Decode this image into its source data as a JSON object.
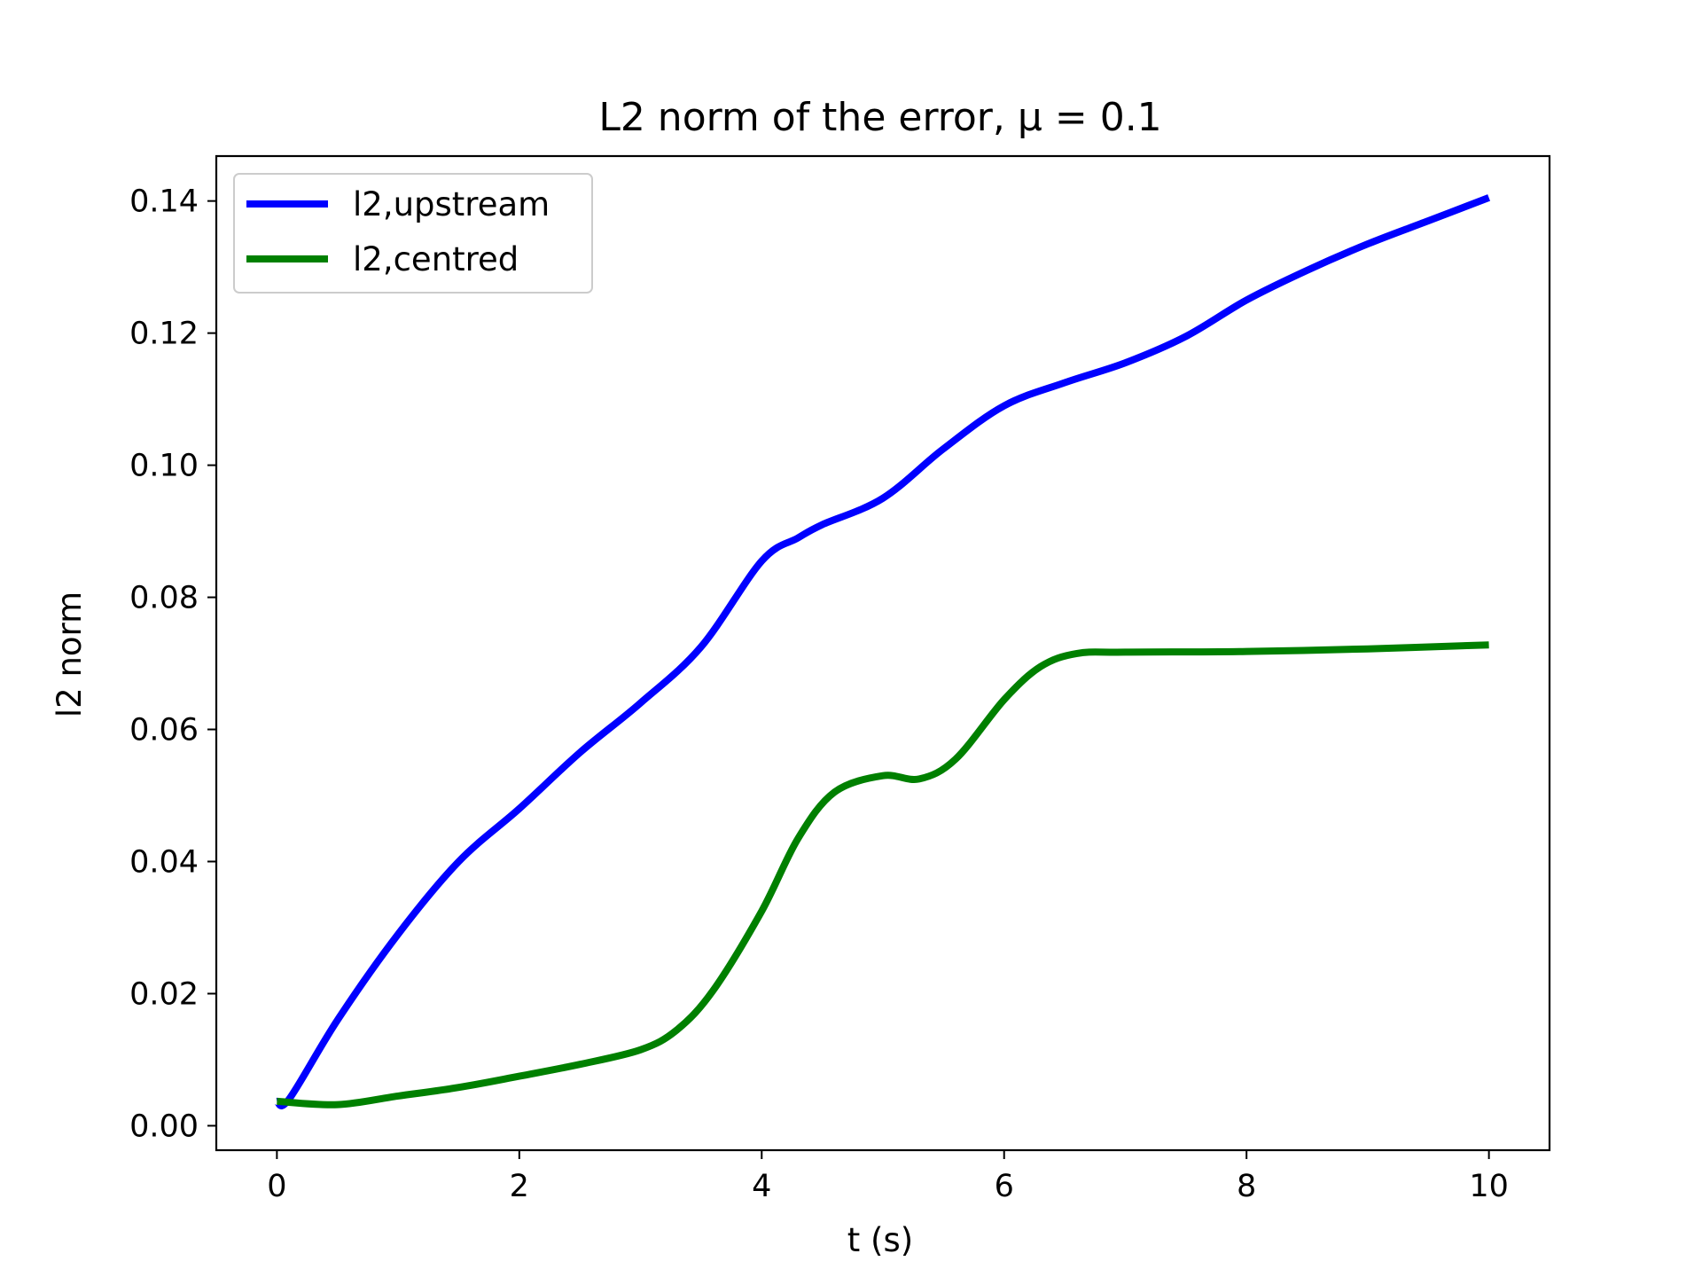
{
  "chart_data": {
    "type": "line",
    "title": "L2 norm of the error, μ = 0.1",
    "xlabel": "t (s)",
    "ylabel": "l2 norm",
    "xlim": [
      -0.5,
      10.5
    ],
    "ylim": [
      -0.0037,
      0.1468
    ],
    "xticks": [
      0,
      2,
      4,
      6,
      8,
      10
    ],
    "xtick_labels": [
      "0",
      "2",
      "4",
      "6",
      "8",
      "10"
    ],
    "yticks": [
      0.0,
      0.02,
      0.04,
      0.06,
      0.08,
      0.1,
      0.12,
      0.14
    ],
    "ytick_labels": [
      "0.00",
      "0.02",
      "0.04",
      "0.06",
      "0.08",
      "0.10",
      "0.12",
      "0.14"
    ],
    "grid": false,
    "legend_position": "top-left",
    "series": [
      {
        "name": "l2,upstream",
        "color": "#0000ff",
        "x": [
          0,
          0.1,
          0.5,
          1,
          1.5,
          2,
          2.5,
          3,
          3.5,
          4,
          4.3,
          4.5,
          5,
          5.5,
          6,
          6.5,
          7,
          7.5,
          8,
          8.5,
          9,
          9.5,
          10
        ],
        "y": [
          0.0037,
          0.004,
          0.016,
          0.029,
          0.04,
          0.048,
          0.0565,
          0.064,
          0.0725,
          0.0855,
          0.089,
          0.091,
          0.095,
          0.1025,
          0.109,
          0.1125,
          0.1155,
          0.1195,
          0.125,
          0.1295,
          0.1335,
          0.137,
          0.1405
        ]
      },
      {
        "name": "l2,centred",
        "color": "#008000",
        "x": [
          0,
          0.5,
          1,
          1.5,
          2,
          2.5,
          3,
          3.3,
          3.6,
          4,
          4.3,
          4.6,
          5,
          5.3,
          5.6,
          6,
          6.3,
          6.6,
          7,
          8,
          9,
          10
        ],
        "y": [
          0.0037,
          0.0032,
          0.0045,
          0.0058,
          0.0075,
          0.0093,
          0.0115,
          0.0145,
          0.0205,
          0.0325,
          0.0435,
          0.0505,
          0.053,
          0.0525,
          0.0555,
          0.0645,
          0.0695,
          0.0715,
          0.0717,
          0.0718,
          0.0722,
          0.0728
        ]
      }
    ]
  }
}
